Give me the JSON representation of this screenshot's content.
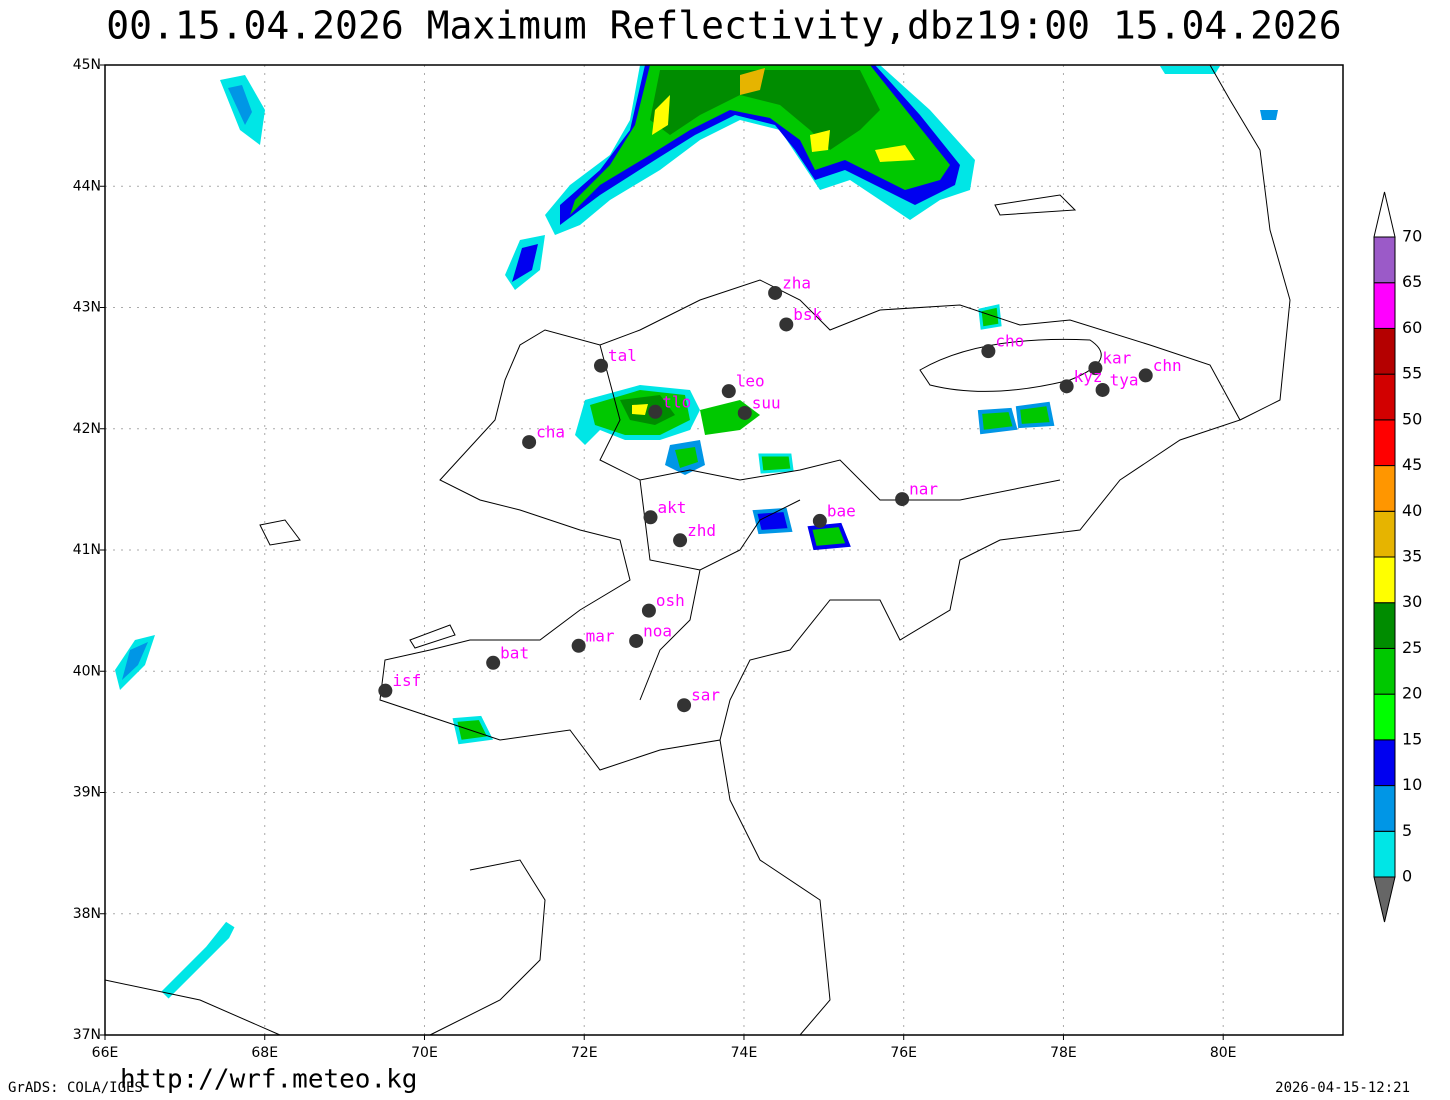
{
  "title": "00.15.04.2026 Maximum Reflectivity,dbz19:00 15.04.2026",
  "map": {
    "xlim": [
      66,
      81.5
    ],
    "ylim": [
      37,
      45
    ],
    "xticks": [
      {
        "value": 66,
        "label": "66E"
      },
      {
        "value": 68,
        "label": "68E"
      },
      {
        "value": 70,
        "label": "70E"
      },
      {
        "value": 72,
        "label": "72E"
      },
      {
        "value": 74,
        "label": "74E"
      },
      {
        "value": 76,
        "label": "76E"
      },
      {
        "value": 78,
        "label": "78E"
      },
      {
        "value": 80,
        "label": "80E"
      }
    ],
    "yticks": [
      {
        "value": 37,
        "label": "37N"
      },
      {
        "value": 38,
        "label": "38N"
      },
      {
        "value": 39,
        "label": "39N"
      },
      {
        "value": 40,
        "label": "40N"
      },
      {
        "value": 41,
        "label": "41N"
      },
      {
        "value": 42,
        "label": "42N"
      },
      {
        "value": 43,
        "label": "43N"
      },
      {
        "value": 44,
        "label": "44N"
      },
      {
        "value": 45,
        "label": "45N"
      }
    ],
    "grid": true,
    "stations": [
      {
        "label": "zha",
        "lon": 74.39,
        "lat": 43.12
      },
      {
        "label": "bsk",
        "lon": 74.53,
        "lat": 42.86
      },
      {
        "label": "tal",
        "lon": 72.21,
        "lat": 42.52
      },
      {
        "label": "cho",
        "lon": 77.06,
        "lat": 42.64
      },
      {
        "label": "kar",
        "lon": 78.4,
        "lat": 42.5
      },
      {
        "label": "chn",
        "lon": 79.03,
        "lat": 42.44
      },
      {
        "label": "kyz",
        "lon": 78.04,
        "lat": 42.35
      },
      {
        "label": "tya",
        "lon": 78.49,
        "lat": 42.32
      },
      {
        "label": "leo",
        "lon": 73.81,
        "lat": 42.31
      },
      {
        "label": "suu",
        "lon": 74.01,
        "lat": 42.13
      },
      {
        "label": "tlo",
        "lon": 72.89,
        "lat": 42.14
      },
      {
        "label": "cha",
        "lon": 71.31,
        "lat": 41.89
      },
      {
        "label": "nar",
        "lon": 75.98,
        "lat": 41.42
      },
      {
        "label": "bae",
        "lon": 74.95,
        "lat": 41.24
      },
      {
        "label": "akt",
        "lon": 72.83,
        "lat": 41.27
      },
      {
        "label": "zhd",
        "lon": 73.2,
        "lat": 41.08
      },
      {
        "label": "osh",
        "lon": 72.81,
        "lat": 40.5
      },
      {
        "label": "mar",
        "lon": 71.93,
        "lat": 40.21
      },
      {
        "label": "noa",
        "lon": 72.65,
        "lat": 40.25
      },
      {
        "label": "bat",
        "lon": 70.86,
        "lat": 40.07
      },
      {
        "label": "isf",
        "lon": 69.51,
        "lat": 39.84
      },
      {
        "label": "sar",
        "lon": 73.25,
        "lat": 39.72
      }
    ]
  },
  "colorbar": {
    "levels": [
      0,
      5,
      10,
      15,
      20,
      25,
      30,
      35,
      40,
      45,
      50,
      55,
      60,
      65,
      70
    ],
    "colors": [
      "#00e6e6",
      "#0096e6",
      "#0000f0",
      "#00ff00",
      "#00c800",
      "#008c00",
      "#ffff00",
      "#e6b400",
      "#ff9600",
      "#ff0000",
      "#d20000",
      "#b40000",
      "#ff00ff",
      "#9b5ac8"
    ]
  },
  "footer": {
    "left": "GrADS: COLA/IGES",
    "url": "http://wrf.meteo.kg",
    "timestamp": "2026-04-15-12:21"
  }
}
